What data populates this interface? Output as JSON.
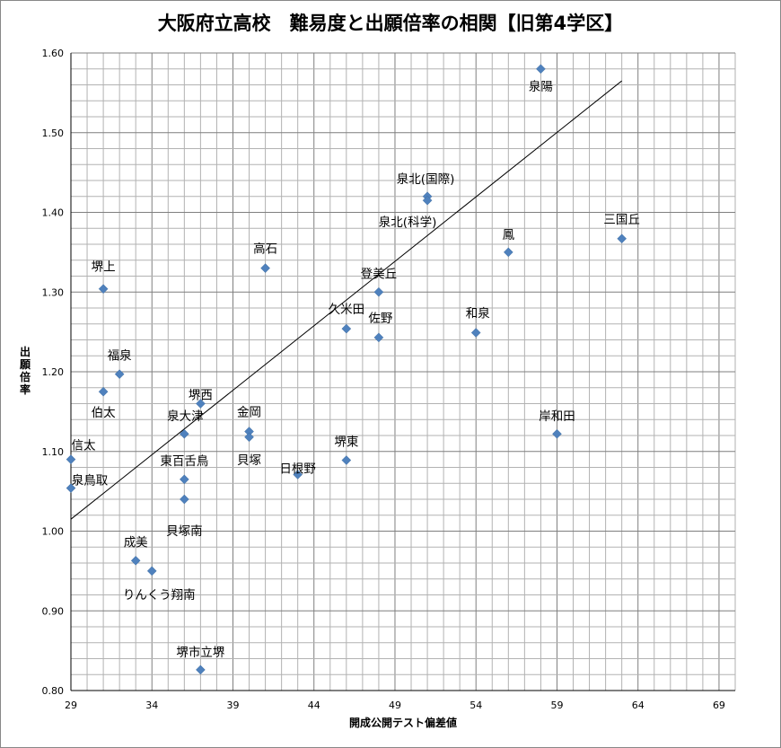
{
  "chart_data": {
    "type": "scatter",
    "title": "大阪府立高校　難易度と出願倍率の相関【旧第4学区】",
    "xlabel": "開成公開テスト偏差値",
    "ylabel": "出願倍率",
    "xlim": [
      29,
      70
    ],
    "ylim": [
      0.8,
      1.6
    ],
    "x_ticks": [
      "29",
      "34",
      "39",
      "44",
      "49",
      "54",
      "59",
      "64",
      "69"
    ],
    "y_ticks": [
      "0.80",
      "0.90",
      "1.00",
      "1.10",
      "1.20",
      "1.30",
      "1.40",
      "1.50",
      "1.60"
    ],
    "grid": true,
    "marker_color": "#4f81bd",
    "trendline": {
      "x": [
        29,
        63
      ],
      "y": [
        1.015,
        1.565
      ]
    },
    "points": [
      {
        "name": "泉陽",
        "x": 58,
        "y": 1.58
      },
      {
        "name": "泉北(国際)",
        "x": 51,
        "y": 1.42
      },
      {
        "name": "泉北(科学)",
        "x": 51,
        "y": 1.415
      },
      {
        "name": "三国丘",
        "x": 63,
        "y": 1.367
      },
      {
        "name": "鳳",
        "x": 56,
        "y": 1.35
      },
      {
        "name": "高石",
        "x": 41,
        "y": 1.33
      },
      {
        "name": "堺上",
        "x": 31,
        "y": 1.304
      },
      {
        "name": "登美丘",
        "x": 48,
        "y": 1.3
      },
      {
        "name": "久米田",
        "x": 46,
        "y": 1.254
      },
      {
        "name": "和泉",
        "x": 54,
        "y": 1.249
      },
      {
        "name": "佐野",
        "x": 48,
        "y": 1.243
      },
      {
        "name": "福泉",
        "x": 32,
        "y": 1.197
      },
      {
        "name": "伯太",
        "x": 31,
        "y": 1.175
      },
      {
        "name": "堺西",
        "x": 37,
        "y": 1.16
      },
      {
        "name": "泉大津",
        "x": 36,
        "y": 1.122
      },
      {
        "name": "金岡",
        "x": 40,
        "y": 1.125
      },
      {
        "name": "貝塚",
        "x": 40,
        "y": 1.118
      },
      {
        "name": "岸和田",
        "x": 59,
        "y": 1.122
      },
      {
        "name": "信太",
        "x": 29,
        "y": 1.09
      },
      {
        "name": "堺東",
        "x": 46,
        "y": 1.089
      },
      {
        "name": "日根野",
        "x": 43,
        "y": 1.071
      },
      {
        "name": "東百舌鳥",
        "x": 36,
        "y": 1.065
      },
      {
        "name": "泉鳥取",
        "x": 29,
        "y": 1.054
      },
      {
        "name": "貝塚南",
        "x": 36,
        "y": 1.04
      },
      {
        "name": "成美",
        "x": 33,
        "y": 0.963
      },
      {
        "name": "りんくう翔南",
        "x": 34,
        "y": 0.95
      },
      {
        "name": "堺市立堺",
        "x": 37,
        "y": 0.826
      }
    ]
  }
}
